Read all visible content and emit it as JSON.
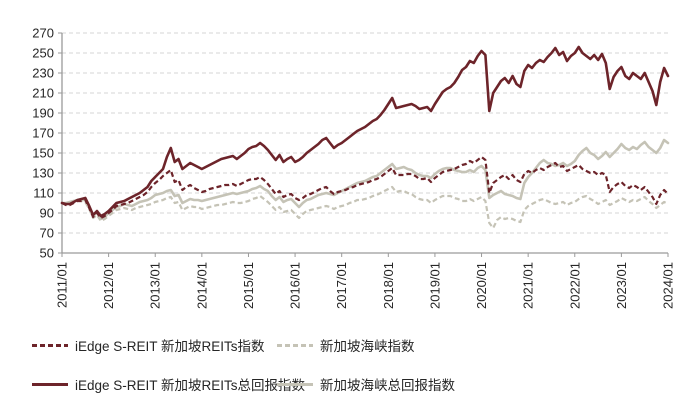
{
  "chart_data": {
    "type": "line",
    "title": "",
    "xlabel": "",
    "ylabel": "",
    "ylim": [
      50,
      270
    ],
    "y_ticks": [
      50,
      70,
      90,
      110,
      130,
      150,
      170,
      190,
      210,
      230,
      250,
      270
    ],
    "x_tick_labels": [
      "2011/01",
      "2012/01",
      "2013/01",
      "2014/01",
      "2015/01",
      "2016/01",
      "2017/01",
      "2018/01",
      "2019/01",
      "2020/01",
      "2021/01",
      "2022/01",
      "2023/01",
      "2024/01"
    ],
    "x_frequency": "monthly",
    "grid": "horizontal-dashed",
    "legend_position": "bottom",
    "draw_order": [
      1,
      3,
      0,
      2
    ],
    "colors": {
      "dark_red": "#6d242a",
      "gray": "#c5c3b6",
      "grid": "#d6d6d6",
      "axis": "#9a9a9a",
      "text": "#262626"
    },
    "series": [
      {
        "name": "iEdge S-REIT 新加坡REITs指数",
        "style": "dashed",
        "color": "#6d242a",
        "values": [
          100,
          98,
          98,
          100,
          102,
          102,
          103,
          95,
          86,
          90,
          85,
          87,
          90,
          93,
          97,
          98,
          99,
          100,
          102,
          104,
          106,
          108,
          111,
          116,
          120,
          123,
          127,
          130,
          133,
          121,
          123,
          113,
          116,
          118,
          115,
          113,
          111,
          112,
          114,
          115,
          116,
          117,
          118,
          118,
          119,
          117,
          119,
          121,
          123,
          124,
          124,
          126,
          123,
          119,
          114,
          109,
          112,
          106,
          108,
          109,
          105,
          103,
          105,
          108,
          109,
          111,
          113,
          115,
          116,
          112,
          109,
          111,
          112,
          113,
          115,
          116,
          118,
          119,
          120,
          121,
          123,
          124,
          126,
          129,
          132,
          135,
          128,
          128,
          128,
          129,
          129,
          127,
          124,
          124,
          125,
          121,
          125,
          128,
          131,
          132,
          133,
          134,
          136,
          138,
          139,
          142,
          140,
          143,
          146,
          143,
          110,
          120,
          123,
          126,
          128,
          124,
          128,
          123,
          121,
          129,
          132,
          130,
          133,
          135,
          133,
          136,
          138,
          140,
          136,
          137,
          132,
          134,
          136,
          138,
          134,
          132,
          130,
          131,
          128,
          130,
          128,
          111,
          116,
          119,
          121,
          117,
          115,
          118,
          116,
          113,
          116,
          111,
          106,
          99,
          108,
          113,
          109
        ]
      },
      {
        "name": "新加坡海峡指数",
        "style": "dashed",
        "color": "#c5c3b6",
        "values": [
          100,
          99,
          100,
          101,
          102,
          102,
          101,
          94,
          85,
          88,
          82,
          84,
          87,
          90,
          93,
          94,
          95,
          94,
          93,
          95,
          96,
          97,
          98,
          99,
          101,
          102,
          103,
          105,
          106,
          100,
          101,
          93,
          95,
          97,
          96,
          96,
          94,
          95,
          96,
          97,
          98,
          98,
          99,
          100,
          101,
          100,
          100,
          101,
          102,
          104,
          105,
          107,
          104,
          101,
          97,
          93,
          96,
          91,
          92,
          93,
          89,
          85,
          89,
          92,
          93,
          94,
          95,
          96,
          97,
          96,
          94,
          96,
          97,
          98,
          100,
          101,
          103,
          103,
          104,
          105,
          107,
          108,
          110,
          112,
          114,
          116,
          111,
          112,
          112,
          110,
          109,
          106,
          104,
          103,
          103,
          100,
          103,
          105,
          107,
          107,
          107,
          105,
          104,
          102,
          102,
          104,
          102,
          104,
          106,
          102,
          80,
          75,
          83,
          86,
          84,
          85,
          84,
          82,
          81,
          93,
          97,
          99,
          101,
          103,
          104,
          102,
          100,
          99,
          100,
          101,
          98,
          100,
          101,
          104,
          106,
          107,
          104,
          102,
          99,
          101,
          103,
          98,
          100,
          102,
          105,
          103,
          101,
          103,
          102,
          104,
          106,
          102,
          99,
          95,
          98,
          101,
          99
        ]
      },
      {
        "name": "iEdge S-REIT 新加坡REITs总回报指数",
        "style": "solid",
        "color": "#6d242a",
        "values": [
          100,
          99,
          99,
          101,
          103,
          104,
          105,
          97,
          88,
          92,
          87,
          89,
          92,
          96,
          100,
          101,
          102,
          104,
          106,
          108,
          110,
          113,
          116,
          122,
          126,
          130,
          134,
          146,
          155,
          141,
          144,
          134,
          137,
          140,
          138,
          136,
          134,
          136,
          138,
          140,
          142,
          144,
          145,
          146,
          147,
          144,
          147,
          150,
          154,
          156,
          157,
          160,
          157,
          153,
          148,
          143,
          148,
          141,
          144,
          146,
          141,
          143,
          146,
          150,
          153,
          156,
          159,
          163,
          165,
          160,
          155,
          158,
          160,
          163,
          166,
          169,
          172,
          174,
          176,
          179,
          182,
          184,
          188,
          193,
          199,
          205,
          195,
          196,
          197,
          198,
          199,
          197,
          194,
          195,
          196,
          192,
          199,
          205,
          211,
          214,
          216,
          220,
          226,
          233,
          236,
          242,
          240,
          247,
          252,
          248,
          192,
          210,
          216,
          222,
          225,
          220,
          227,
          219,
          216,
          232,
          238,
          235,
          240,
          243,
          241,
          246,
          250,
          255,
          248,
          251,
          242,
          247,
          250,
          256,
          250,
          247,
          244,
          248,
          243,
          249,
          240,
          214,
          226,
          232,
          236,
          227,
          224,
          230,
          227,
          224,
          230,
          221,
          212,
          198,
          221,
          235,
          227
        ]
      },
      {
        "name": "新加坡海峡总回报指数",
        "style": "solid",
        "color": "#c5c3b6",
        "values": [
          100,
          100,
          101,
          102,
          103,
          103,
          103,
          96,
          87,
          91,
          84,
          86,
          90,
          93,
          96,
          97,
          99,
          98,
          97,
          99,
          101,
          102,
          103,
          105,
          108,
          109,
          110,
          112,
          113,
          107,
          108,
          100,
          102,
          104,
          103,
          103,
          102,
          103,
          104,
          105,
          106,
          107,
          108,
          109,
          110,
          109,
          110,
          111,
          112,
          114,
          115,
          117,
          114,
          112,
          107,
          103,
          106,
          101,
          103,
          104,
          100,
          96,
          100,
          103,
          104,
          106,
          108,
          109,
          110,
          109,
          108,
          110,
          112,
          114,
          116,
          118,
          120,
          121,
          122,
          124,
          126,
          127,
          130,
          133,
          136,
          139,
          134,
          135,
          136,
          134,
          133,
          130,
          128,
          127,
          127,
          125,
          129,
          132,
          134,
          135,
          135,
          133,
          132,
          131,
          131,
          133,
          131,
          135,
          137,
          133,
          105,
          108,
          110,
          112,
          109,
          108,
          107,
          105,
          104,
          120,
          126,
          130,
          135,
          140,
          143,
          140,
          139,
          137,
          138,
          140,
          137,
          139,
          142,
          148,
          152,
          155,
          150,
          148,
          144,
          147,
          151,
          146,
          150,
          154,
          159,
          155,
          153,
          156,
          154,
          158,
          161,
          156,
          153,
          150,
          155,
          163,
          160
        ]
      }
    ]
  },
  "legend": {
    "rows": [
      [
        0,
        1
      ],
      [
        2,
        3
      ]
    ]
  }
}
